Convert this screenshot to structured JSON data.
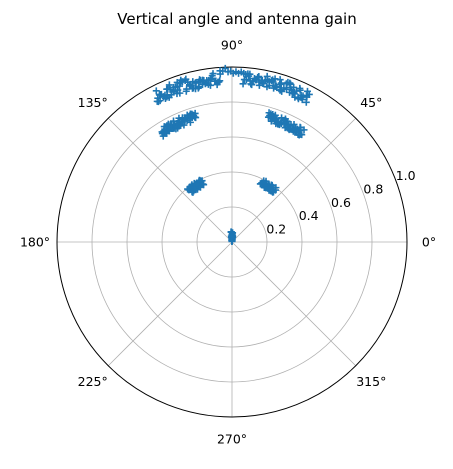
{
  "chart_data": {
    "type": "scatter",
    "projection": "polar",
    "title": "Vertical angle and antenna gain",
    "angle_ticks": [
      "0°",
      "45°",
      "90°",
      "135°",
      "180°",
      "225°",
      "270°",
      "315°"
    ],
    "radial_ticks": [
      "0.2",
      "0.4",
      "0.6",
      "0.8",
      "1.0"
    ],
    "radial_range": [
      0,
      1.0
    ],
    "grid": true,
    "marker": "plus",
    "colors": {
      "marker": "#1f77b4",
      "grid": "#b0b0b0",
      "frame": "#000000"
    },
    "series": [
      {
        "clusters": [
          {
            "theta_range_deg": [
              83,
              97
            ],
            "r_range": [
              0.0,
              0.06
            ],
            "count": 30
          },
          {
            "theta_range_deg": [
              50,
              64
            ],
            "r_range": [
              0.36,
              0.4
            ],
            "count": 40
          },
          {
            "theta_range_deg": [
              116,
              130
            ],
            "r_range": [
              0.36,
              0.4
            ],
            "count": 40
          },
          {
            "theta_range_deg": [
              57,
              74
            ],
            "r_range": [
              0.72,
              0.77
            ],
            "count": 60
          },
          {
            "theta_range_deg": [
              106,
              123
            ],
            "r_range": [
              0.72,
              0.77
            ],
            "count": 60
          },
          {
            "theta_range_deg": [
              62,
              86
            ],
            "r_range": [
              0.9,
              0.97
            ],
            "count": 70
          },
          {
            "theta_range_deg": [
              94,
              118
            ],
            "r_range": [
              0.9,
              0.97
            ],
            "count": 70
          },
          {
            "theta_range_deg": [
              86,
              94
            ],
            "r_range": [
              0.96,
              1.0
            ],
            "count": 10
          }
        ]
      }
    ]
  }
}
